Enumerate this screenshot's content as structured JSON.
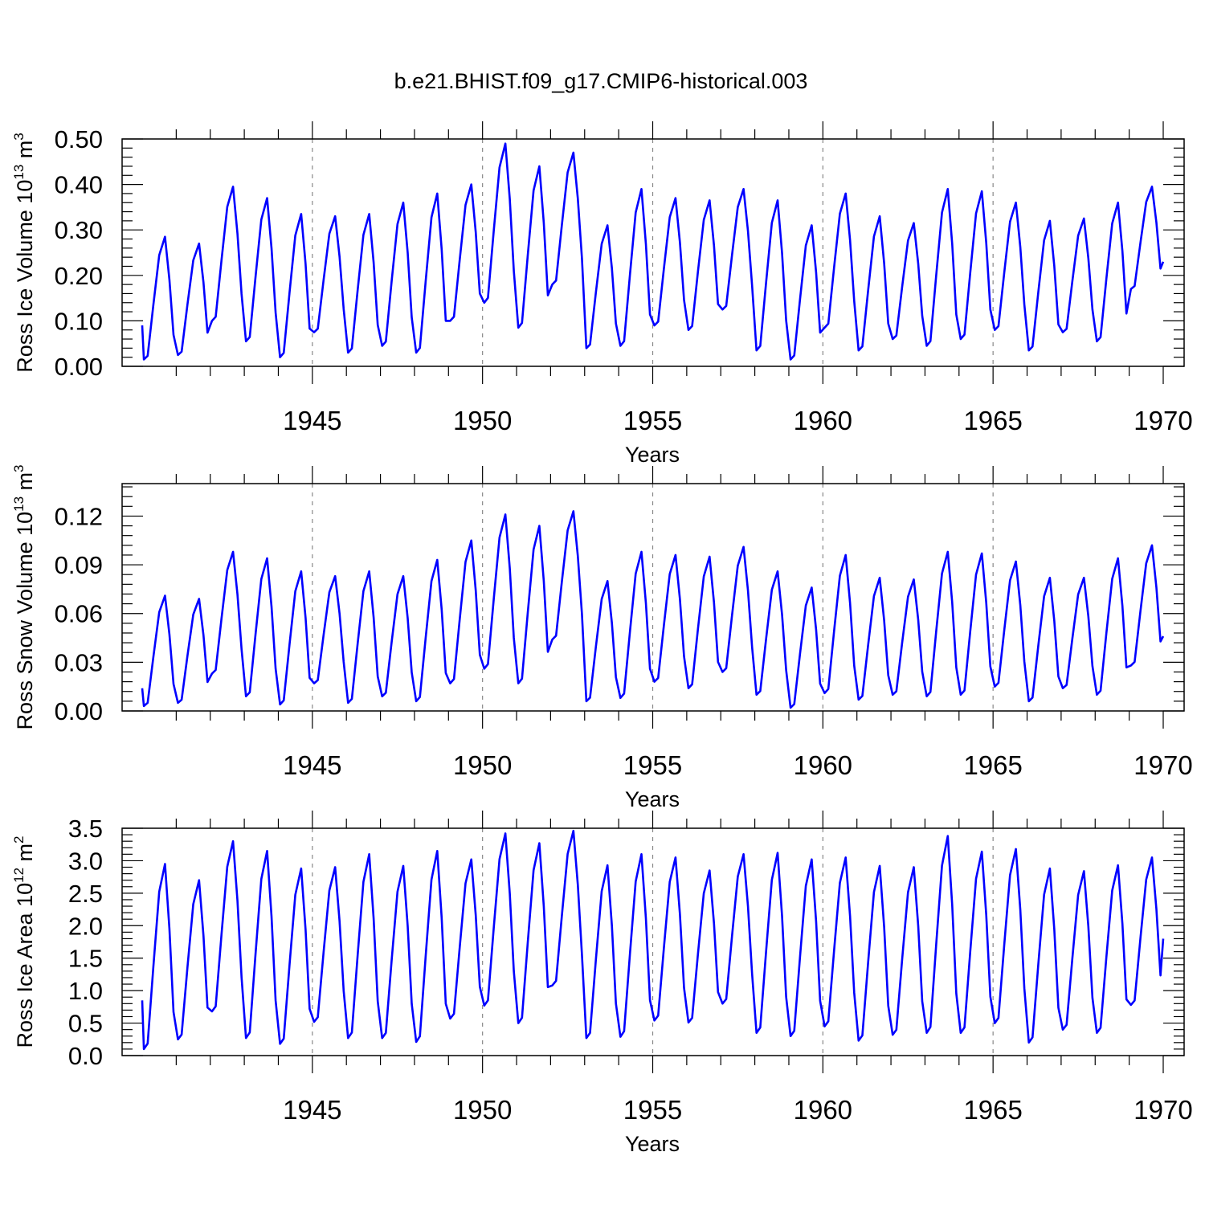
{
  "figure_title": "b.e21.BHIST.f09_g17.CMIP6-historical.003",
  "chart_data": [
    {
      "type": "line",
      "id": "ross-ice-volume",
      "ylabel_main": "Ross Ice Volume 10",
      "ylabel_exp": "13",
      "ylabel_unit": " m",
      "ylabel_unit_exp": "3",
      "xlabel": "Years",
      "xlim": [
        1940.0,
        1970.0
      ],
      "ylim": [
        0.0,
        0.5
      ],
      "yticks": [
        0.0,
        0.1,
        0.2,
        0.3,
        0.4,
        0.5
      ],
      "ytick_labels": [
        "0.00",
        "0.10",
        "0.20",
        "0.30",
        "0.40",
        "0.50"
      ],
      "xticks": [
        1945,
        1950,
        1955,
        1960,
        1965,
        1970
      ],
      "xtick_labels": [
        "1945",
        "1950",
        "1955",
        "1960",
        "1965",
        "1970"
      ],
      "series_color": "#0000ff",
      "series": [
        {
          "name": "Ross Ice Volume",
          "year_max": [
            0.285,
            0.27,
            0.395,
            0.37,
            0.335,
            0.33,
            0.335,
            0.36,
            0.38,
            0.4,
            0.49,
            0.44,
            0.47,
            0.31,
            0.39,
            0.37,
            0.365,
            0.39,
            0.365,
            0.31,
            0.38,
            0.33,
            0.315,
            0.39,
            0.385,
            0.36,
            0.32,
            0.325,
            0.36,
            0.395
          ],
          "year_min": [
            0.015,
            0.025,
            0.1,
            0.055,
            0.02,
            0.075,
            0.03,
            0.045,
            0.03,
            0.1,
            0.14,
            0.085,
            0.18,
            0.04,
            0.045,
            0.09,
            0.08,
            0.125,
            0.035,
            0.015,
            0.085,
            0.035,
            0.06,
            0.045,
            0.06,
            0.08,
            0.035,
            0.075,
            0.055,
            0.17
          ],
          "start": 0.09,
          "end": 0.23
        }
      ]
    },
    {
      "type": "line",
      "id": "ross-snow-volume",
      "ylabel_main": "Ross Snow Volume 10",
      "ylabel_exp": "13",
      "ylabel_unit": " m",
      "ylabel_unit_exp": "3",
      "xlabel": "Years",
      "xlim": [
        1940.0,
        1970.0
      ],
      "ylim": [
        0.0,
        0.14
      ],
      "yticks": [
        0.0,
        0.03,
        0.06,
        0.09,
        0.12
      ],
      "ytick_labels": [
        "0.00",
        "0.03",
        "0.06",
        "0.09",
        "0.12"
      ],
      "xticks": [
        1945,
        1950,
        1955,
        1960,
        1965,
        1970
      ],
      "xtick_labels": [
        "1945",
        "1950",
        "1955",
        "1960",
        "1965",
        "1970"
      ],
      "series_color": "#0000ff",
      "series": [
        {
          "name": "Ross Snow Volume",
          "year_max": [
            0.071,
            0.069,
            0.098,
            0.094,
            0.086,
            0.083,
            0.086,
            0.083,
            0.093,
            0.105,
            0.121,
            0.114,
            0.123,
            0.08,
            0.098,
            0.096,
            0.095,
            0.101,
            0.086,
            0.076,
            0.096,
            0.082,
            0.081,
            0.098,
            0.097,
            0.092,
            0.082,
            0.082,
            0.094,
            0.102
          ],
          "year_min": [
            0.003,
            0.005,
            0.023,
            0.009,
            0.004,
            0.017,
            0.005,
            0.009,
            0.006,
            0.017,
            0.026,
            0.017,
            0.044,
            0.006,
            0.008,
            0.018,
            0.014,
            0.024,
            0.01,
            0.002,
            0.011,
            0.007,
            0.01,
            0.009,
            0.01,
            0.015,
            0.006,
            0.014,
            0.01,
            0.028
          ],
          "start": 0.014,
          "end": 0.046
        }
      ]
    },
    {
      "type": "line",
      "id": "ross-ice-area",
      "ylabel_main": "Ross Ice Area 10",
      "ylabel_exp": "12",
      "ylabel_unit": " m",
      "ylabel_unit_exp": "2",
      "xlabel": "Years",
      "xlim": [
        1940.0,
        1970.0
      ],
      "ylim": [
        0.0,
        3.5
      ],
      "yticks": [
        0.0,
        0.5,
        1.0,
        1.5,
        2.0,
        2.5,
        3.0,
        3.5
      ],
      "ytick_labels": [
        "0.0",
        "0.5",
        "1.0",
        "1.5",
        "2.0",
        "2.5",
        "3.0",
        "3.5"
      ],
      "xticks": [
        1945,
        1950,
        1955,
        1960,
        1965,
        1970
      ],
      "xtick_labels": [
        "1945",
        "1950",
        "1955",
        "1960",
        "1965",
        "1970"
      ],
      "series_color": "#0000ff",
      "series": [
        {
          "name": "Ross Ice Area",
          "year_max": [
            2.95,
            2.7,
            3.3,
            3.15,
            2.88,
            2.9,
            3.1,
            2.92,
            3.15,
            3.02,
            3.42,
            3.27,
            3.46,
            2.93,
            3.1,
            3.05,
            2.85,
            3.1,
            3.12,
            3.02,
            3.05,
            2.92,
            2.9,
            3.38,
            3.14,
            3.18,
            2.88,
            2.84,
            2.93,
            3.05
          ],
          "year_min": [
            0.1,
            0.25,
            0.68,
            0.27,
            0.18,
            0.52,
            0.27,
            0.27,
            0.21,
            0.57,
            0.77,
            0.5,
            1.08,
            0.27,
            0.29,
            0.54,
            0.51,
            0.8,
            0.35,
            0.3,
            0.45,
            0.23,
            0.32,
            0.35,
            0.35,
            0.5,
            0.2,
            0.4,
            0.35,
            0.78
          ],
          "start": 0.85,
          "end": 1.8
        }
      ]
    }
  ]
}
